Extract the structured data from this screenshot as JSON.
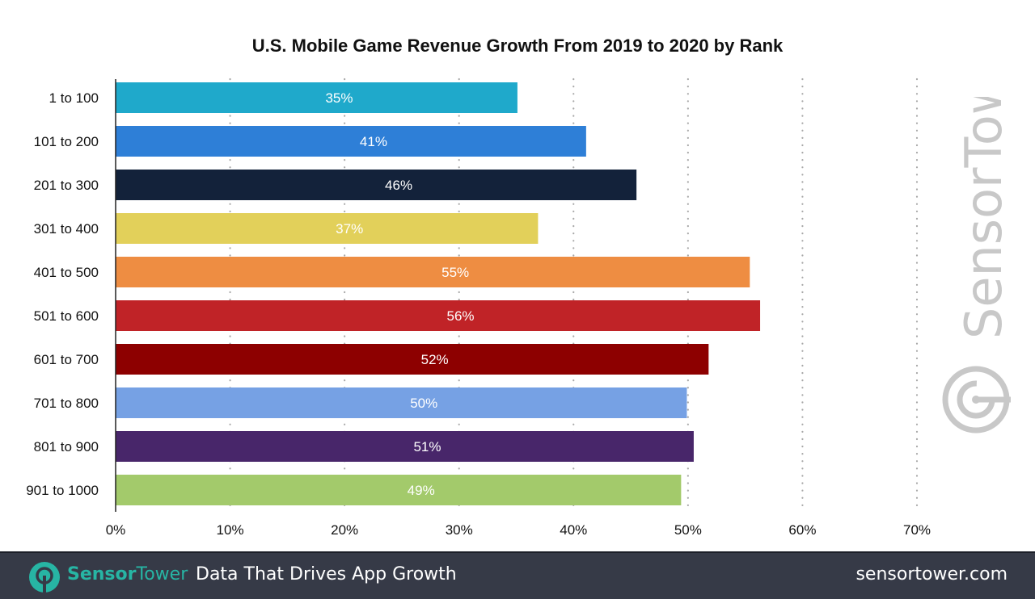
{
  "chart_data": {
    "type": "bar",
    "orientation": "horizontal",
    "title": "U.S. Mobile Game Revenue Growth From 2019 to 2020 by Rank",
    "xlabel": "",
    "ylabel": "",
    "xlim": [
      0,
      70
    ],
    "x_ticks": [
      "0%",
      "10%",
      "20%",
      "30%",
      "40%",
      "50%",
      "60%",
      "70%"
    ],
    "x_tick_values": [
      0,
      10,
      20,
      30,
      40,
      50,
      60,
      70
    ],
    "grid": "vertical dotted",
    "categories": [
      "1 to 100",
      "101 to 200",
      "201 to 300",
      "301 to 400",
      "401 to 500",
      "501 to 600",
      "601 to 700",
      "701 to 800",
      "801 to 900",
      "901 to 1000"
    ],
    "values": [
      35.1,
      41.1,
      45.5,
      36.9,
      55.4,
      56.3,
      51.8,
      49.9,
      50.5,
      49.4
    ],
    "data_labels": [
      "35%",
      "41%",
      "46%",
      "37%",
      "55%",
      "56%",
      "52%",
      "50%",
      "51%",
      "49%"
    ],
    "colors": [
      "#1fa9cb",
      "#2e7fd7",
      "#13223a",
      "#e2d05a",
      "#ee8d42",
      "#c02327",
      "#8d0000",
      "#76a1e4",
      "#48266a",
      "#a3ca6b"
    ]
  },
  "watermark": {
    "text": "SensorTower",
    "color": "#c8c8c8"
  },
  "footer": {
    "brand_sensor": "Sensor",
    "brand_tower": "Tower",
    "tagline": "Data That Drives App Growth",
    "url": "sensortower.com",
    "brand_color": "#27b5a4",
    "background": "#363a47"
  }
}
